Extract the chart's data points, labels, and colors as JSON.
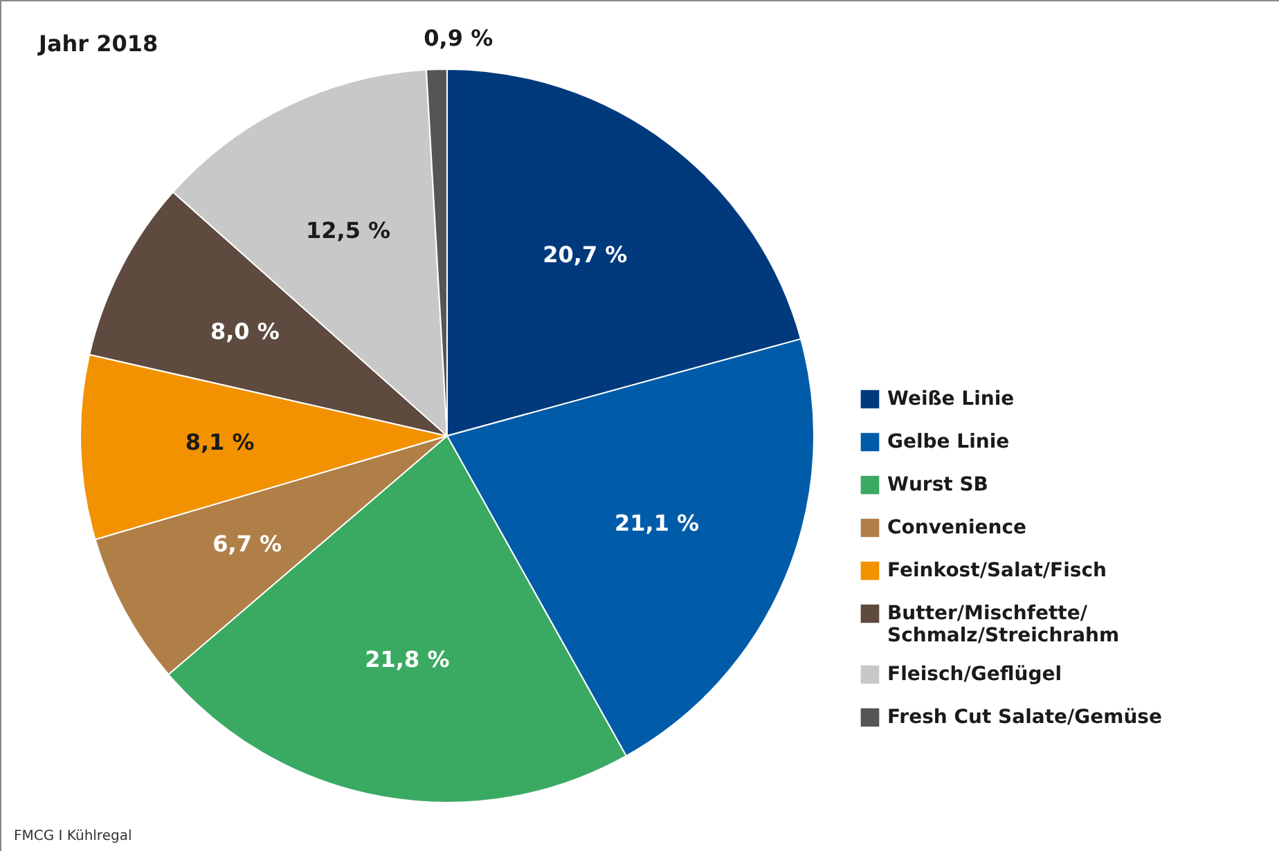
{
  "chart_data": {
    "type": "pie",
    "title": "Jahr 2018",
    "categories": [
      "Weiße Linie",
      "Gelbe Linie",
      "Wurst SB",
      "Convenience",
      "Feinkost/Salat/Fisch",
      "Butter/Mischfette/Schmalz/Streichrahm",
      "Fleisch/Geflügel",
      "Fresh Cut Salate/Gemüse"
    ],
    "values": [
      20.7,
      21.1,
      21.8,
      6.7,
      8.1,
      8.0,
      12.5,
      0.9
    ],
    "colors": [
      "#003a7d",
      "#005ca8",
      "#3aaa63",
      "#b07f48",
      "#f39200",
      "#5e4a3e",
      "#c8c8c8",
      "#555555"
    ],
    "value_labels": [
      "20,7 %",
      "21,1 %",
      "21,8 %",
      "6,7 %",
      "8,1 %",
      "8,0 %",
      "12,5 %",
      "0,9 %"
    ],
    "legend": "right",
    "annotations": [
      "FMCG I Kühlregal"
    ]
  }
}
